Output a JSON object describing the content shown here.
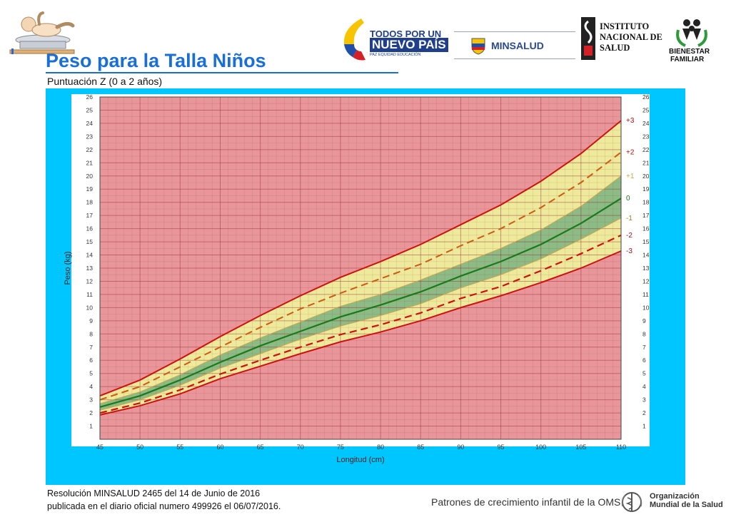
{
  "header": {
    "title": "Peso para la Talla Niños",
    "subtitle": "Puntuación Z (0 a 2 años)"
  },
  "logos": {
    "todos_line1": "TODOS POR UN",
    "todos_line2": "NUEVO PAÍS",
    "todos_line3": "PAZ  EQUIDAD  EDUCACIÓN",
    "minsalud": "MINSALUD",
    "ins_line1": "INSTITUTO",
    "ins_line2": "NACIONAL DE",
    "ins_line3": "SALUD",
    "icbf_line1": "BIENESTAR",
    "icbf_line2": "FAMILIAR"
  },
  "footer": {
    "line1": "Resolución MINSALUD 2465 del 14 de Junio de 2016",
    "line2": "publicada en el diario oficial numero 499926 el 06/07/2016.",
    "oms": "Patrones de crecimiento infantil de la OMS",
    "who_line1": "Organización",
    "who_line2": "Mundial de la Salud"
  },
  "colors": {
    "frame": "#00c6ff",
    "plot_red": "#e8969a",
    "band_yellow": "#eeea9c",
    "band_green": "#8dbb86",
    "line_red": "#cc1111",
    "line_orange": "#cc5a11",
    "line_median": "#1a7a1a",
    "title_blue": "#1a6fd6"
  },
  "chart_data": {
    "type": "line",
    "xlabel": "Longitud (cm)",
    "ylabel": "Peso (kg)",
    "xlim": [
      45,
      110
    ],
    "ylim": [
      0,
      26
    ],
    "xticks": [
      45,
      50,
      55,
      60,
      65,
      70,
      75,
      80,
      85,
      90,
      95,
      100,
      105,
      110
    ],
    "yticks": [
      1,
      2,
      3,
      4,
      5,
      6,
      7,
      8,
      9,
      10,
      11,
      12,
      13,
      14,
      15,
      16,
      17,
      18,
      19,
      20,
      21,
      22,
      23,
      24,
      25,
      26
    ],
    "x": [
      45,
      50,
      55,
      60,
      65,
      70,
      75,
      80,
      85,
      90,
      95,
      100,
      105,
      110
    ],
    "series": [
      {
        "name": "+3",
        "values": [
          3.3,
          4.5,
          6.1,
          7.8,
          9.4,
          10.9,
          12.3,
          13.5,
          14.8,
          16.3,
          17.8,
          19.6,
          21.7,
          24.2
        ]
      },
      {
        "name": "+2",
        "values": [
          3.0,
          4.0,
          5.5,
          7.0,
          8.5,
          9.9,
          11.1,
          12.2,
          13.3,
          14.7,
          16.0,
          17.6,
          19.5,
          21.8
        ]
      },
      {
        "name": "+1",
        "values": [
          2.7,
          3.6,
          4.9,
          6.4,
          7.7,
          8.9,
          10.1,
          11.0,
          12.1,
          13.3,
          14.5,
          15.9,
          17.7,
          20.0
        ]
      },
      {
        "name": "0",
        "values": [
          2.45,
          3.3,
          4.5,
          5.85,
          7.1,
          8.2,
          9.3,
          10.2,
          11.2,
          12.4,
          13.5,
          14.8,
          16.4,
          18.3
        ]
      },
      {
        "name": "-1",
        "values": [
          2.2,
          3.0,
          4.1,
          5.4,
          6.5,
          7.6,
          8.6,
          9.4,
          10.3,
          11.5,
          12.5,
          13.7,
          15.2,
          16.8
        ]
      },
      {
        "name": "-2",
        "values": [
          2.0,
          2.75,
          3.75,
          4.95,
          6.0,
          7.0,
          7.95,
          8.7,
          9.6,
          10.7,
          11.6,
          12.8,
          14.1,
          15.5
        ]
      },
      {
        "name": "-3",
        "values": [
          1.85,
          2.55,
          3.45,
          4.6,
          5.55,
          6.5,
          7.4,
          8.15,
          9.0,
          10.0,
          10.9,
          11.9,
          13.0,
          14.3
        ]
      }
    ]
  }
}
